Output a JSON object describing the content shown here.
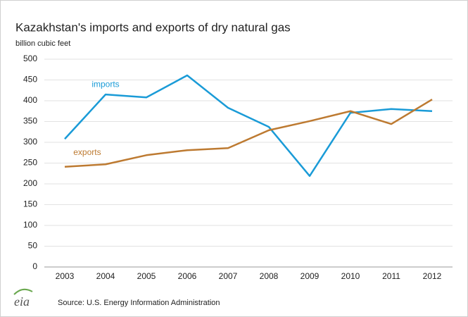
{
  "chart_data": {
    "type": "line",
    "title": "Kazakhstan's imports and exports of dry natural gas",
    "ylabel": "billion cubic feet",
    "categories": [
      "2003",
      "2004",
      "2005",
      "2006",
      "2007",
      "2008",
      "2009",
      "2010",
      "2011",
      "2012"
    ],
    "series": [
      {
        "name": "imports",
        "color": "#1a9bd7",
        "values": [
          308,
          415,
          408,
          461,
          383,
          337,
          219,
          371,
          380,
          375
        ]
      },
      {
        "name": "exports",
        "color": "#bd7a31",
        "values": [
          241,
          247,
          269,
          281,
          286,
          329,
          351,
          375,
          344,
          403
        ]
      }
    ],
    "ylim": [
      0,
      500
    ],
    "yticks": [
      0,
      50,
      100,
      150,
      200,
      250,
      300,
      350,
      400,
      450,
      500
    ],
    "grid": true,
    "source": "Source: U.S. Energy Information Administration",
    "logo": "eia"
  }
}
